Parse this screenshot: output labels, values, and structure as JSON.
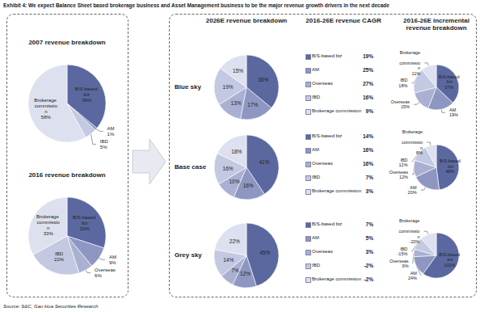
{
  "title": "Exhibit 4: We expect Balance Sheet based brokerage business and Asset Management business to be the major revenue growth drivers in the next decade",
  "source": "Source: S&C, Gao Hua Securities Research",
  "columns": [
    "2026E revenue breakdown",
    "2016-26E revenue CAGR",
    "2016-26E incremental revenue breakdown"
  ],
  "segments": {
    "categories": [
      "B/S-based biz",
      "AM",
      "Overseas",
      "IBD",
      "Brokerage commission"
    ],
    "colors": [
      "#5b68a0",
      "#8e97c2",
      "#a9b0d2",
      "#c4c9e2",
      "#dde0ef"
    ]
  },
  "scenarios": [
    {
      "name": "Blue sky",
      "cagr": [
        "19%",
        "25%",
        "27%",
        "16%",
        "9%"
      ]
    },
    {
      "name": "Base case",
      "cagr": [
        "14%",
        "16%",
        "16%",
        "7%",
        "3%"
      ]
    },
    {
      "name": "Grey sky",
      "cagr": [
        "7%",
        "5%",
        "3%",
        "-2%",
        "-2%"
      ]
    }
  ],
  "chart_data": [
    {
      "type": "pie",
      "title": "2007 revenue breakdown",
      "categories": [
        "B/S-based biz",
        "AM",
        "IBD",
        "Brokerage commission"
      ],
      "values": [
        36,
        1,
        5,
        58
      ],
      "value_labels": [
        "36%",
        "1%",
        "5%",
        "58%"
      ],
      "colors": [
        "#5b68a0",
        "#8e97c2",
        "#c4c9e2",
        "#dde0ef"
      ],
      "data_labels": true
    },
    {
      "type": "pie",
      "title": "2016 revenue breakdown",
      "categories": [
        "B/S-based biz",
        "AM",
        "Overseas",
        "IBD",
        "Brokerage commission"
      ],
      "values": [
        30,
        9,
        6,
        22,
        33
      ],
      "value_labels": [
        "30%",
        "9%",
        "6%",
        "22%",
        "33%"
      ],
      "colors": [
        "#5b68a0",
        "#8e97c2",
        "#a9b0d2",
        "#c4c9e2",
        "#dde0ef"
      ],
      "data_labels": true
    },
    {
      "type": "pie",
      "values": [
        36,
        17,
        13,
        19,
        15
      ],
      "value_labels": [
        "36%",
        "17%",
        "13%",
        "19%",
        "15%"
      ],
      "colors": [
        "#5b68a0",
        "#8e97c2",
        "#a9b0d2",
        "#c4c9e2",
        "#dde0ef"
      ],
      "data_labels": true
    },
    {
      "type": "pie",
      "categories": [
        "B/S-based biz",
        "AM",
        "Overseas",
        "IBD",
        "Brokerage commission"
      ],
      "values": [
        37,
        19,
        15,
        18,
        11
      ],
      "value_labels": [
        "37%",
        "19%",
        "15%",
        "18%",
        "11%"
      ],
      "colors": [
        "#5b68a0",
        "#8e97c2",
        "#a9b0d2",
        "#c4c9e2",
        "#dde0ef"
      ],
      "data_labels": true
    },
    {
      "type": "pie",
      "values": [
        41,
        16,
        10,
        16,
        18
      ],
      "value_labels": [
        "41%",
        "16%",
        "10%",
        "16%",
        "18%"
      ],
      "colors": [
        "#5b68a0",
        "#8e97c2",
        "#a9b0d2",
        "#c4c9e2",
        "#dde0ef"
      ],
      "data_labels": true
    },
    {
      "type": "pie",
      "categories": [
        "B/S-based biz",
        "AM",
        "Overseas",
        "IBD",
        "Brokerage commission"
      ],
      "values": [
        48,
        20,
        12,
        12,
        8
      ],
      "value_labels": [
        "48%",
        "20%",
        "12%",
        "12%",
        "8%"
      ],
      "colors": [
        "#5b68a0",
        "#8e97c2",
        "#a9b0d2",
        "#c4c9e2",
        "#dde0ef"
      ],
      "data_labels": true
    },
    {
      "type": "pie",
      "values": [
        45,
        12,
        7,
        14,
        22
      ],
      "value_labels": [
        "45%",
        "12%",
        "7%",
        "14%",
        "22%"
      ],
      "colors": [
        "#5b68a0",
        "#8e97c2",
        "#a9b0d2",
        "#c4c9e2",
        "#dde0ef"
      ],
      "data_labels": true
    },
    {
      "type": "pie",
      "categories": [
        "B/S-based biz",
        "AM",
        "Overseas",
        "IBD",
        "Brokerage commission"
      ],
      "values": [
        102,
        24,
        9,
        -15,
        -20
      ],
      "value_labels": [
        "102%",
        "24%",
        "9%",
        "-15%",
        "-20%"
      ],
      "colors": [
        "#5b68a0",
        "#8e97c2",
        "#a9b0d2",
        "#c4c9e2",
        "#dde0ef"
      ],
      "data_labels": true
    }
  ]
}
